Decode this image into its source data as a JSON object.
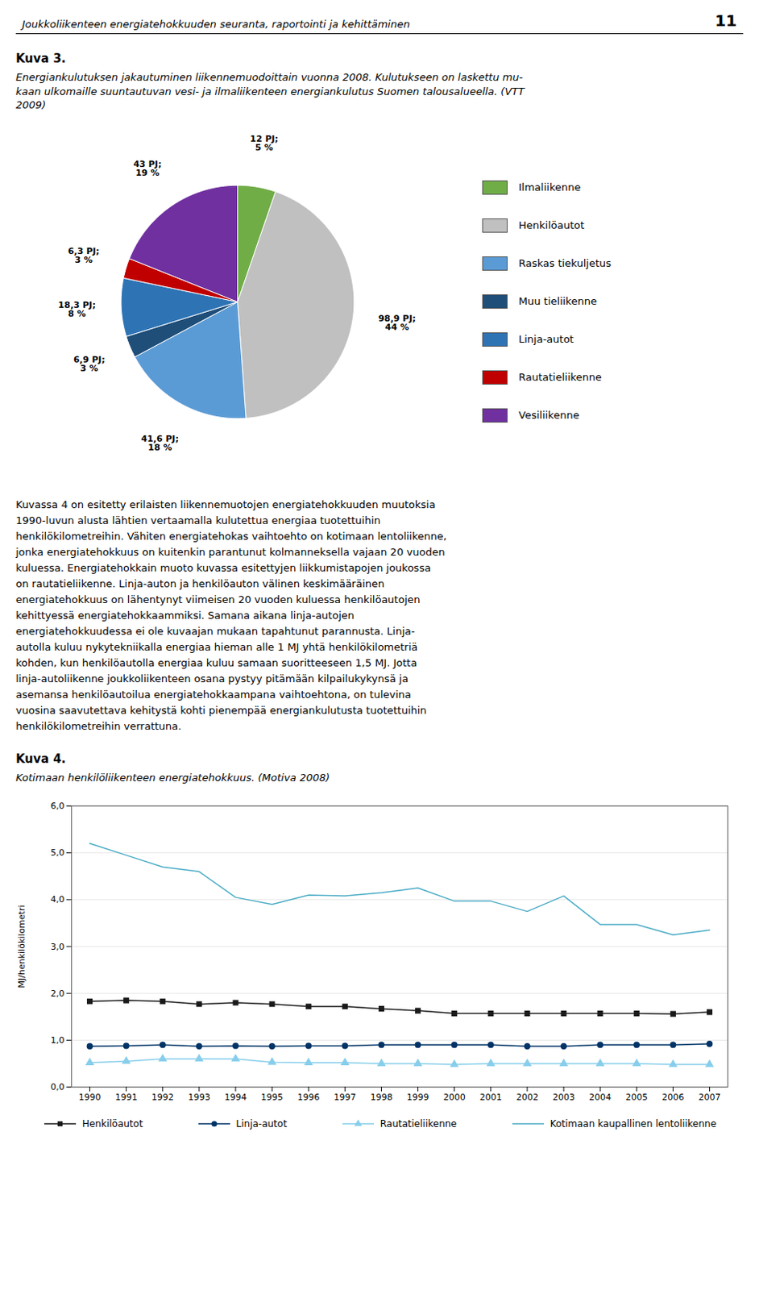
{
  "header": "Joukkoliikenteen energiatehokkuuden seuranta, raportointi ja kehittäminen",
  "page_number": "11",
  "body_text": [
    "Kuvassa 4 on esitetty erilaisten liikennemuotojen energiatehokkuuden muutoksia",
    "1990-luvun alusta lähtien vertaamalla kulutettua energiaa tuotettuihin",
    "henkilökilometreihin. Vähiten energiatehokas vaihtoehto on kotimaan lentoliikenne,",
    "jonka energiatehokkuus on kuitenkin parantunut kolmanneksella vajaan 20 vuoden",
    "kuluessa. Energiatehokkain muoto kuvassa esitettyjen liikkumistapojen joukossa",
    "on rautatieliikenne. Linja-auton ja henkilöauton välinen keskimääräinen",
    "energiatehokkuus on lähentynyt viimeisen 20 vuoden kuluessa henkilöautojen",
    "kehittyessä energiatehokkaammiksi. Samana aikana linja-autojen",
    "energiatehokkuudessa ei ole kuvaajan mukaan tapahtunut parannusta. Linja-",
    "autolla kuluu nykytekniikalla energiaa hieman alle 1 MJ yhtä henkilökilometriä",
    "kohden, kun henkilöautolla energiaa kuluu samaan suoritteeseen 1,5 MJ. Jotta",
    "linja-autoliikenne joukkoliikenteen osana pystyy pitämään kilpailukykynsä ja",
    "asemansa henkilöautoilua energiatehokkaampana vaihtoehtona, on tulevina",
    "vuosina saavutettava kehitystä kohti pienempää energiankulutusta tuotettuihin",
    "henkilökilometreihin verrattuna."
  ],
  "chart_data": [
    {
      "type": "pie",
      "title": "Kuva 3.",
      "subtitle": "Energiankulutuksen jakautuminen liikennemuodoittain vuonna 2008. Kulutukseen on laskettu mu-\nkaan ulkomaille suuntautuvan vesi- ja ilmaliikenteen energiankulutus Suomen talousalueella. (VTT\n2009)",
      "categories": [
        "Ilmaliikenne",
        "Henkilöautot",
        "Raskas tiekuljetus",
        "Muu tieliikenne",
        "Linja-autot",
        "Rautatieliikenne",
        "Vesiliikenne"
      ],
      "values": [
        12.0,
        98.9,
        41.6,
        6.9,
        18.3,
        6.3,
        43.0
      ],
      "value_labels": [
        "12 PJ;\n5 %",
        "98,9 PJ;\n44 %",
        "41,6 PJ;\n18 %",
        "6,9 PJ;\n3 %",
        "18,3 PJ;\n8 %",
        "6,3 PJ;\n3 %",
        "43 PJ;\n19 %"
      ],
      "colors": [
        "#70ad47",
        "#c0c0c0",
        "#5b9bd5",
        "#1f4e79",
        "#2e74b5",
        "#c00000",
        "#7030a0"
      ],
      "data_labels": true,
      "legend": "right"
    },
    {
      "type": "line",
      "title": "Kuva 4.",
      "subtitle": "Kotimaan henkilöliikenteen energiatehokkuus. (Motiva 2008)",
      "x": [
        1990,
        1991,
        1992,
        1993,
        1994,
        1995,
        1996,
        1997,
        1998,
        1999,
        2000,
        2001,
        2002,
        2003,
        2004,
        2005,
        2006,
        2007
      ],
      "xlim": [
        1989.5,
        2007.5
      ],
      "xticks": [
        1990,
        1991,
        1992,
        1993,
        1994,
        1995,
        1996,
        1997,
        1998,
        1999,
        2000,
        2001,
        2002,
        2003,
        2004,
        2005,
        2006,
        2007
      ],
      "ylabel": "MJ/henkilökilometri",
      "ylim": [
        0.0,
        6.0
      ],
      "yticks": [
        {
          "value": 0.0,
          "label": "0,0"
        },
        {
          "value": 1.0,
          "label": "1,0"
        },
        {
          "value": 2.0,
          "label": "2,0"
        },
        {
          "value": 3.0,
          "label": "3,0"
        },
        {
          "value": 4.0,
          "label": "4,0"
        },
        {
          "value": 5.0,
          "label": "5,0"
        },
        {
          "value": 6.0,
          "label": "6,0"
        }
      ],
      "grid": "y",
      "legend": "bottom",
      "series": [
        {
          "name": "Henkilöautot",
          "color": "#1a1a1a",
          "marker": "square",
          "values": [
            1.83,
            1.85,
            1.83,
            1.77,
            1.8,
            1.77,
            1.72,
            1.72,
            1.67,
            1.63,
            1.57,
            1.57,
            1.57,
            1.57,
            1.57,
            1.57,
            1.56,
            1.6
          ]
        },
        {
          "name": "Linja-autot",
          "color": "#003366",
          "marker": "circle",
          "values": [
            0.87,
            0.88,
            0.9,
            0.87,
            0.88,
            0.87,
            0.88,
            0.88,
            0.9,
            0.9,
            0.9,
            0.9,
            0.87,
            0.87,
            0.9,
            0.9,
            0.9,
            0.92
          ]
        },
        {
          "name": "Rautatieliikenne",
          "color": "#87ceeb",
          "marker": "triangle",
          "values": [
            0.52,
            0.55,
            0.6,
            0.6,
            0.6,
            0.53,
            0.52,
            0.52,
            0.5,
            0.5,
            0.48,
            0.5,
            0.5,
            0.5,
            0.5,
            0.5,
            0.48,
            0.48
          ]
        },
        {
          "name": "Kotimaan kaupallinen lentoliikenne",
          "color": "#4bacc6",
          "marker": "none",
          "values": [
            5.2,
            4.95,
            4.7,
            4.6,
            4.05,
            3.9,
            4.1,
            4.08,
            4.15,
            4.25,
            3.97,
            3.97,
            3.75,
            4.08,
            3.47,
            3.47,
            3.25,
            3.35
          ]
        }
      ]
    }
  ]
}
